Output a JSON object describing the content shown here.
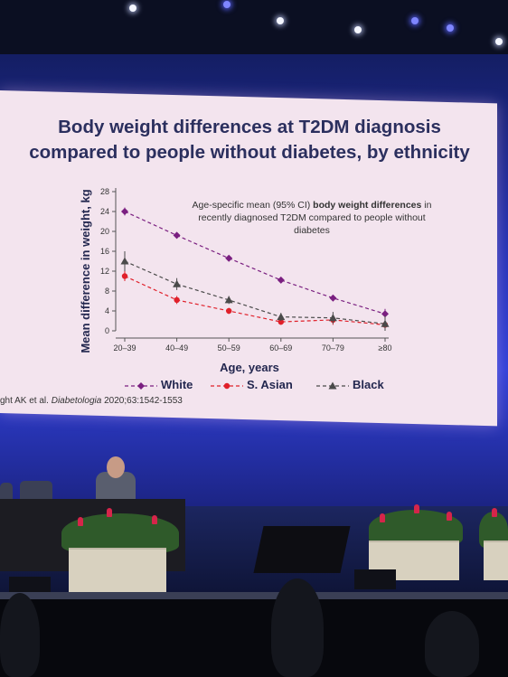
{
  "slide": {
    "title_line1": "Body weight differences at T2DM diagnosis",
    "title_line2": "compared to people without diabetes, by ethnicity",
    "annotation_pre": "Age-specific mean (95% CI) ",
    "annotation_bold": "body weight differences",
    "annotation_post": " in recently diagnosed T2DM compared to people without diabetes",
    "citation_pre": "ght AK et al. ",
    "citation_journal": "Diabetologia",
    "citation_post": " 2020;63:1542-1553"
  },
  "colors": {
    "White": "#7a1f80",
    "S. Asian": "#e0202a",
    "Black": "#4a4a4a"
  },
  "chart_data": {
    "type": "line",
    "xlabel": "Age, years",
    "ylabel": "Mean difference in weight, kg",
    "categories": [
      "20–39",
      "40–49",
      "50–59",
      "60–69",
      "70–79",
      "≥80"
    ],
    "ylim": [
      0,
      28
    ],
    "yticks": [
      0,
      4,
      8,
      12,
      16,
      20,
      24,
      28
    ],
    "grid": false,
    "legend": "bottom",
    "series": [
      {
        "name": "White",
        "marker": "diamond",
        "values": [
          24.0,
          19.2,
          14.6,
          10.2,
          6.6,
          3.4
        ],
        "ci_low": [
          23.2,
          18.7,
          14.1,
          9.8,
          6.1,
          2.4
        ],
        "ci_high": [
          24.8,
          19.7,
          15.1,
          10.6,
          7.1,
          4.4
        ]
      },
      {
        "name": "S. Asian",
        "marker": "circle",
        "values": [
          11.0,
          6.2,
          4.0,
          1.8,
          2.2,
          1.2
        ],
        "ci_low": [
          10.0,
          5.4,
          3.4,
          1.2,
          1.2,
          0.2
        ],
        "ci_high": [
          12.0,
          7.0,
          4.6,
          2.4,
          3.2,
          2.2
        ]
      },
      {
        "name": "Black",
        "marker": "triangle",
        "values": [
          14.0,
          9.4,
          6.2,
          2.8,
          2.6,
          1.4
        ],
        "ci_low": [
          12.0,
          8.2,
          5.4,
          2.0,
          1.4,
          0.0
        ],
        "ci_high": [
          16.0,
          10.6,
          7.0,
          3.6,
          3.8,
          3.0
        ]
      }
    ]
  }
}
